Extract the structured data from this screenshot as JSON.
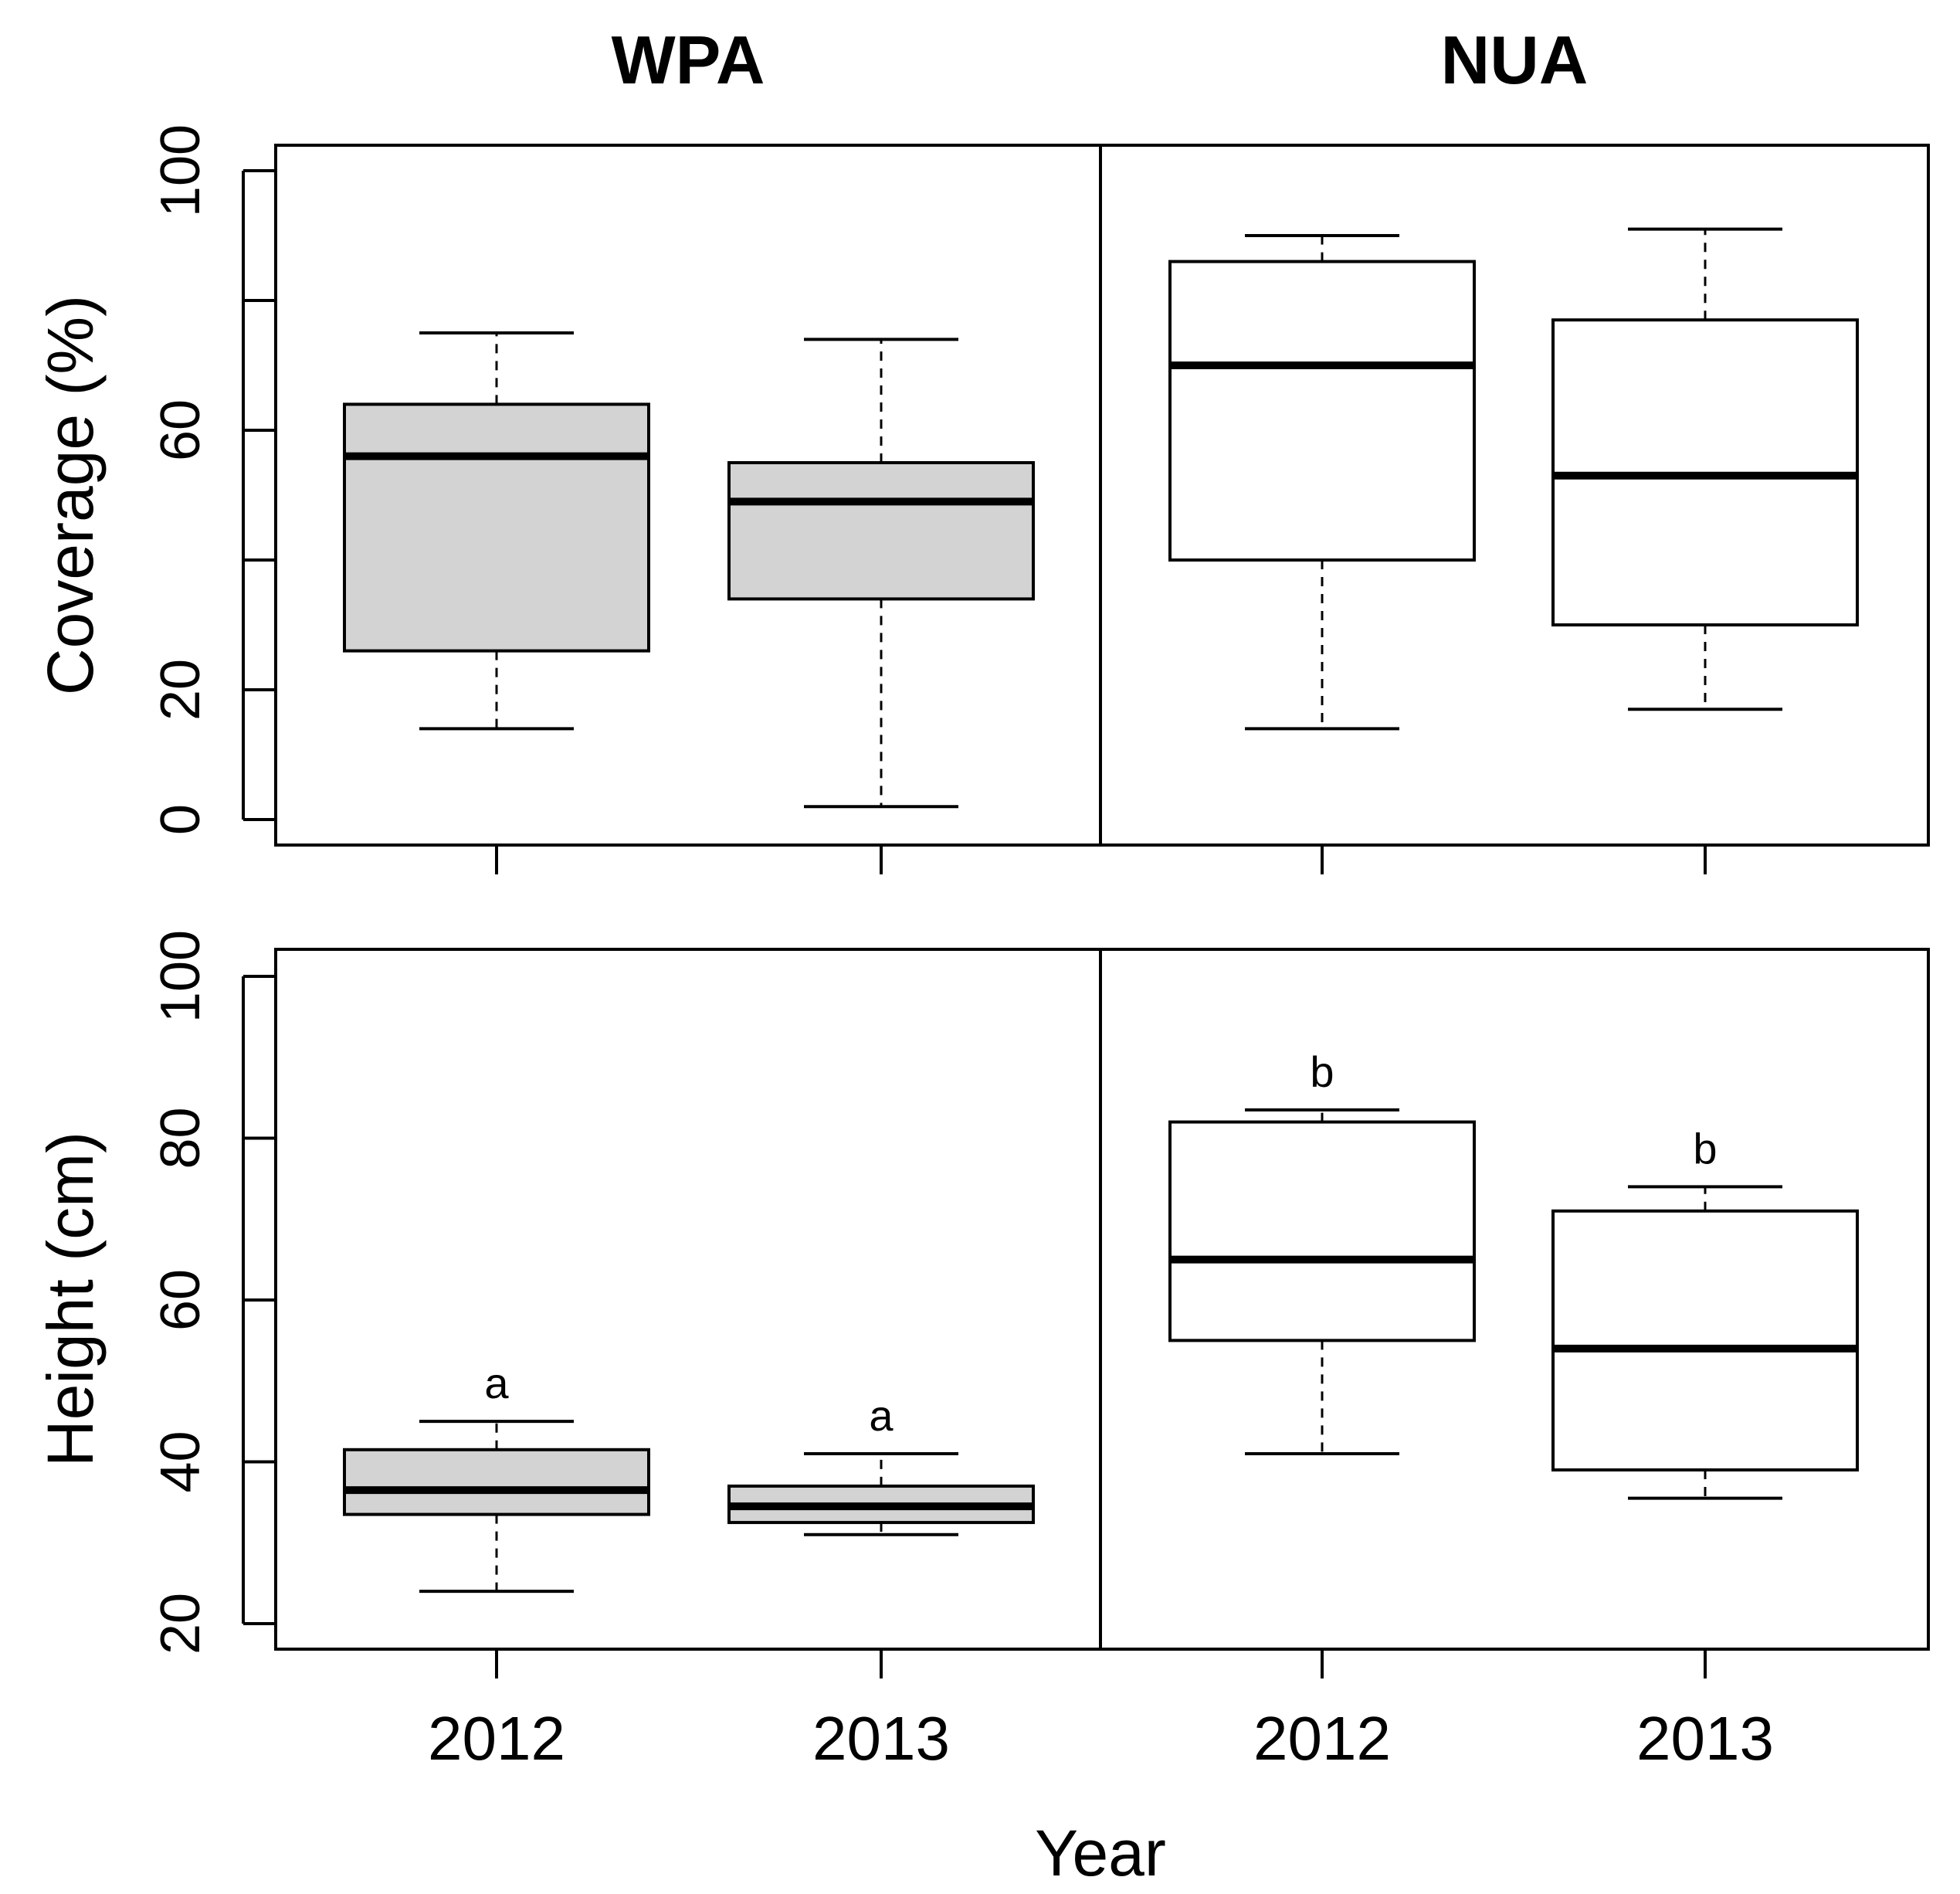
{
  "chart_data": {
    "type": "boxplot",
    "xlabel": "Year",
    "panel_titles": [
      "WPA",
      "NUA"
    ],
    "fill_colors": {
      "WPA": "#d3d3d3",
      "NUA": "#ffffff"
    },
    "rows": [
      {
        "ylabel": "Coverage (%)",
        "ylim": [
          0,
          100
        ],
        "yticks": [
          0,
          20,
          60,
          100
        ],
        "minor_ticks": [
          40,
          80
        ],
        "boxes": [
          {
            "group": "WPA",
            "year": "2012",
            "min": 14,
            "q1": 26,
            "median": 56,
            "q3": 64,
            "max": 75,
            "label": ""
          },
          {
            "group": "WPA",
            "year": "2013",
            "min": 2,
            "q1": 34,
            "median": 49,
            "q3": 55,
            "max": 74,
            "label": ""
          },
          {
            "group": "NUA",
            "year": "2012",
            "min": 14,
            "q1": 40,
            "median": 70,
            "q3": 86,
            "max": 90,
            "label": ""
          },
          {
            "group": "NUA",
            "year": "2013",
            "min": 17,
            "q1": 30,
            "median": 53,
            "q3": 77,
            "max": 91,
            "label": ""
          }
        ]
      },
      {
        "ylabel": "Height (cm)",
        "ylim": [
          20,
          100
        ],
        "yticks": [
          20,
          40,
          60,
          80,
          100
        ],
        "minor_ticks": [],
        "boxes": [
          {
            "group": "WPA",
            "year": "2012",
            "min": 24,
            "q1": 33.5,
            "median": 36.5,
            "q3": 41.5,
            "max": 45,
            "label": "a"
          },
          {
            "group": "WPA",
            "year": "2013",
            "min": 31,
            "q1": 32.5,
            "median": 34.5,
            "q3": 37,
            "max": 41,
            "label": "a"
          },
          {
            "group": "NUA",
            "year": "2012",
            "min": 41,
            "q1": 55,
            "median": 65,
            "q3": 82,
            "max": 83.5,
            "label": "b"
          },
          {
            "group": "NUA",
            "year": "2013",
            "min": 35.5,
            "q1": 39,
            "median": 54,
            "q3": 71,
            "max": 74,
            "label": "b"
          }
        ]
      }
    ]
  }
}
